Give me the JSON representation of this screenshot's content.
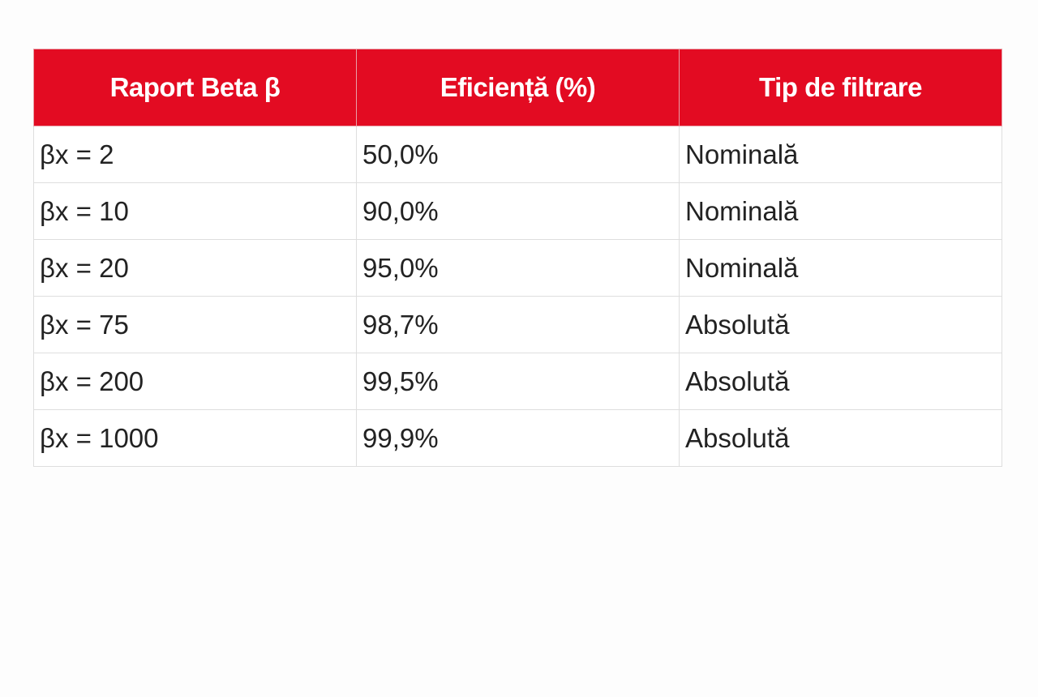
{
  "table": {
    "headers": [
      "Raport Beta β",
      "Eficiență (%)",
      "Tip de filtrare"
    ],
    "rows": [
      [
        "βx = 2",
        "50,0%",
        "Nominală"
      ],
      [
        "βx = 10",
        "90,0%",
        "Nominală"
      ],
      [
        "βx = 20",
        "95,0%",
        "Nominală"
      ],
      [
        "βx = 75",
        "98,7%",
        "Absolută"
      ],
      [
        "βx = 200",
        "99,5%",
        "Absolută"
      ],
      [
        "βx = 1000",
        "99,9%",
        "Absolută"
      ]
    ]
  },
  "colors": {
    "header_bg": "#e30b22",
    "header_text": "#ffffff"
  }
}
